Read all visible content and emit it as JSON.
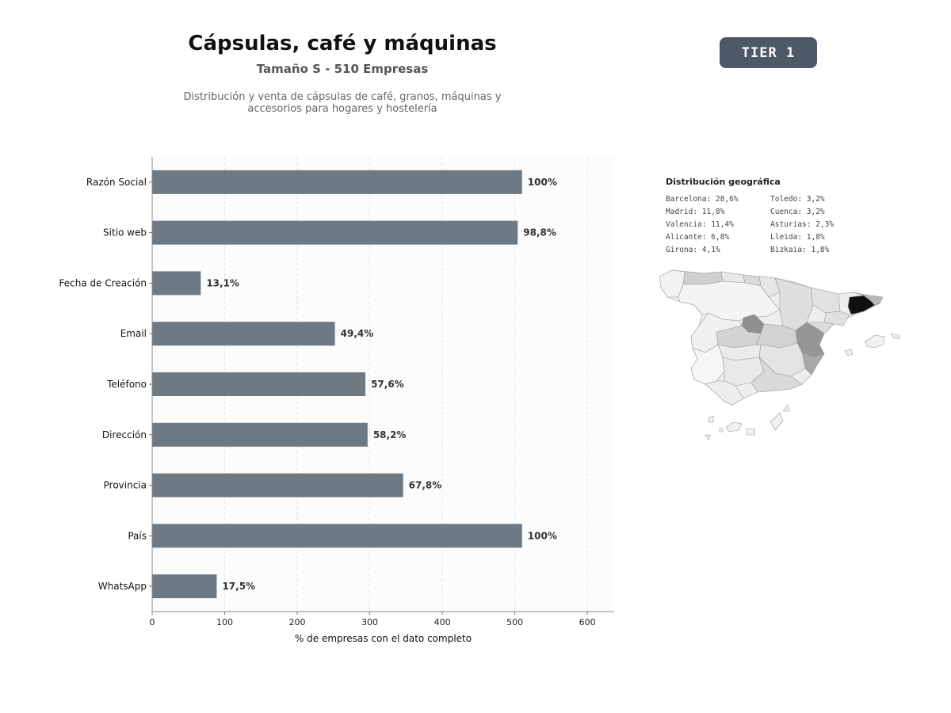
{
  "header": {
    "title": "Cápsulas, café y máquinas",
    "subtitle": "Tamaño S - 510 Empresas",
    "description_line1": "Distribución y venta de cápsulas de café, granos, máquinas y",
    "description_line2": "accesorios para hogares y hostelería",
    "tier": "TIER 1"
  },
  "chart_data": {
    "type": "bar",
    "orientation": "horizontal",
    "categories": [
      "Razón Social",
      "Sitio web",
      "Fecha de Creación",
      "Email",
      "Teléfono",
      "Dirección",
      "Provincia",
      "País",
      "WhatsApp"
    ],
    "values": [
      510,
      504,
      67,
      252,
      294,
      297,
      346,
      510,
      89
    ],
    "value_labels": [
      "100%",
      "98,8%",
      "13,1%",
      "49,4%",
      "57,6%",
      "58,2%",
      "67,8%",
      "100%",
      "17,5%"
    ],
    "xlabel": "% de empresas con el dato completo",
    "xlim": [
      0,
      637
    ],
    "xticks": [
      0,
      100,
      200,
      300,
      400,
      500,
      600
    ],
    "grid": "vertical dashed",
    "bar_color": "#6d7983"
  },
  "geo": {
    "title": "Distribución geográfica",
    "col1": [
      "Barcelona: 28,6%",
      "Madrid: 11,8%",
      "Valencia: 11,4%",
      "Alicante: 6,8%",
      "Girona: 4,1%"
    ],
    "col2": [
      "Toledo: 3,2%",
      "Cuenca: 3,2%",
      "Asturias: 2,3%",
      "Lleida: 1,8%",
      "Bizkaia: 1,8%"
    ]
  }
}
